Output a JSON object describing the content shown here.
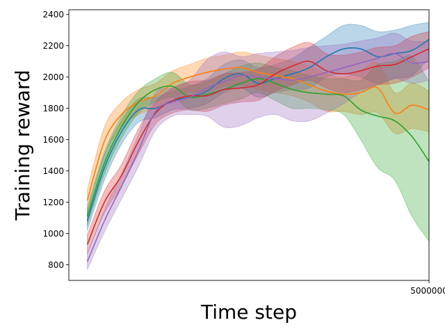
{
  "chart_data": {
    "type": "line",
    "title": "",
    "xlabel": "Time step",
    "ylabel": "Training reward",
    "xlim": [
      -270000,
      5000000
    ],
    "ylim": [
      700,
      2430
    ],
    "x_ticks": [
      5000000
    ],
    "x_tick_labels": [
      "5000000"
    ],
    "y_ticks": [
      800,
      1000,
      1200,
      1400,
      1600,
      1800,
      2000,
      2200,
      2400
    ],
    "grid": false,
    "legend": "none",
    "x": [
      0,
      250000,
      500000,
      750000,
      1000000,
      1250000,
      1500000,
      1750000,
      2000000,
      2250000,
      2500000,
      2750000,
      3000000,
      3250000,
      3500000,
      3750000,
      4000000,
      4250000,
      4500000,
      4750000,
      5000000
    ],
    "series": [
      {
        "color": "#1f77b4",
        "values": [
          1080,
          1420,
          1650,
          1790,
          1800,
          1850,
          1870,
          1910,
          1990,
          2020,
          1960,
          1990,
          2020,
          2060,
          2130,
          2180,
          2180,
          2130,
          2150,
          2170,
          2240
        ],
        "lower": [
          1020,
          1340,
          1570,
          1710,
          1740,
          1790,
          1800,
          1830,
          1900,
          1930,
          1870,
          1900,
          1920,
          1930,
          2000,
          2020,
          2000,
          1960,
          1990,
          2010,
          2120
        ],
        "upper": [
          1140,
          1500,
          1720,
          1860,
          1870,
          1910,
          1940,
          1990,
          2080,
          2110,
          2060,
          2080,
          2120,
          2190,
          2260,
          2330,
          2330,
          2290,
          2300,
          2330,
          2350
        ]
      },
      {
        "color": "#ff7f0e",
        "values": [
          1210,
          1590,
          1760,
          1840,
          1880,
          1960,
          2000,
          2030,
          2050,
          2060,
          2030,
          2010,
          1990,
          1950,
          1910,
          1890,
          1900,
          1930,
          1770,
          1820,
          1790
        ],
        "lower": [
          1140,
          1500,
          1680,
          1760,
          1800,
          1870,
          1900,
          1910,
          1940,
          1950,
          1920,
          1900,
          1880,
          1840,
          1780,
          1780,
          1760,
          1770,
          1640,
          1670,
          1650
        ],
        "upper": [
          1280,
          1680,
          1840,
          1920,
          1960,
          2040,
          2080,
          2120,
          2140,
          2160,
          2140,
          2120,
          2100,
          2070,
          2020,
          2000,
          2040,
          2090,
          1900,
          1960,
          1910
        ]
      },
      {
        "color": "#2ca02c",
        "values": [
          1110,
          1450,
          1680,
          1840,
          1920,
          1940,
          1870,
          1890,
          1920,
          1960,
          1990,
          1960,
          1920,
          1900,
          1890,
          1880,
          1790,
          1750,
          1720,
          1620,
          1460
        ],
        "lower": [
          1050,
          1380,
          1610,
          1770,
          1840,
          1870,
          1790,
          1800,
          1830,
          1860,
          1900,
          1850,
          1800,
          1800,
          1790,
          1760,
          1600,
          1420,
          1340,
          1110,
          950
        ],
        "upper": [
          1170,
          1520,
          1750,
          1910,
          1990,
          2030,
          1950,
          1970,
          2020,
          2070,
          2090,
          2060,
          2040,
          2010,
          1990,
          1990,
          1980,
          2080,
          2100,
          2130,
          1970
        ]
      },
      {
        "color": "#d62728",
        "values": [
          930,
          1200,
          1370,
          1590,
          1770,
          1850,
          1880,
          1880,
          1920,
          1930,
          1950,
          2020,
          2070,
          2100,
          2040,
          2020,
          2040,
          2070,
          2080,
          2130,
          2180
        ],
        "lower": [
          870,
          1130,
          1300,
          1510,
          1700,
          1770,
          1790,
          1780,
          1820,
          1840,
          1850,
          1910,
          1950,
          1980,
          1930,
          1900,
          1920,
          1950,
          1960,
          2000,
          2060
        ],
        "upper": [
          990,
          1270,
          1440,
          1670,
          1840,
          1930,
          1970,
          1980,
          2020,
          2030,
          2050,
          2130,
          2190,
          2220,
          2150,
          2140,
          2160,
          2190,
          2200,
          2260,
          2290
        ]
      },
      {
        "color": "#9467bd",
        "values": [
          820,
          1080,
          1300,
          1530,
          1780,
          1840,
          1870,
          1930,
          1970,
          2010,
          2000,
          1990,
          1980,
          2000,
          2030,
          2060,
          2090,
          2120,
          2150,
          2090,
          2100
        ],
        "lower": [
          770,
          1010,
          1220,
          1430,
          1660,
          1750,
          1760,
          1750,
          1680,
          1690,
          1740,
          1760,
          1720,
          1720,
          1770,
          1830,
          1900,
          1950,
          1990,
          1960,
          1980
        ],
        "upper": [
          870,
          1150,
          1380,
          1630,
          1900,
          1930,
          1980,
          2110,
          2160,
          2130,
          2150,
          2160,
          2170,
          2190,
          2200,
          2210,
          2230,
          2250,
          2280,
          2230,
          2230
        ]
      }
    ]
  }
}
